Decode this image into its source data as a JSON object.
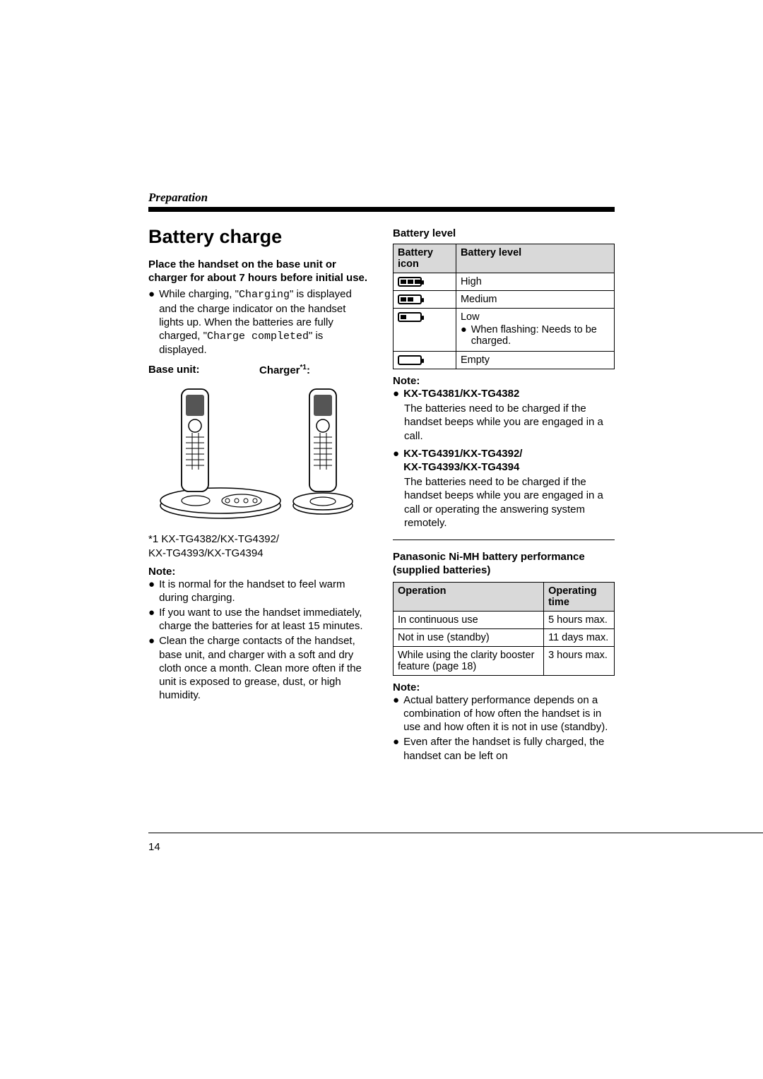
{
  "section": "Preparation",
  "title": "Battery charge",
  "intro_bold": "Place the handset on the base unit or charger for about 7 hours before initial use.",
  "charging_a": "While charging, \"",
  "charging_code1": "Charging",
  "charging_b": "\" is displayed and the charge indicator on the handset lights up. When the batteries are fully charged, \"",
  "charging_code2": "Charge completed",
  "charging_c": "\" is displayed.",
  "label_base": "Base unit:",
  "label_charger": "Charger",
  "label_charger_sup": "*1",
  "label_charger_colon": ":",
  "footnote": "*1 KX-TG4382/KX-TG4392/\nKX-TG4393/KX-TG4394",
  "note_label": "Note:",
  "left_notes": [
    "It is normal for the handset to feel warm during charging.",
    "If you want to use the handset immediately, charge the batteries for at least 15 minutes.",
    "Clean the charge contacts of the handset, base unit, and charger with a soft and dry cloth once a month. Clean more often if the unit is exposed to grease, dust, or high humidity."
  ],
  "battery_level_heading": "Battery level",
  "battery_table": {
    "cols": [
      "Battery icon",
      "Battery level"
    ],
    "rows": [
      {
        "bars": 3,
        "level": "High",
        "flashing": ""
      },
      {
        "bars": 2,
        "level": "Medium",
        "flashing": ""
      },
      {
        "bars": 1,
        "level": "Low",
        "flashing": "When flashing: Needs to be charged."
      },
      {
        "bars": 0,
        "level": "Empty",
        "flashing": ""
      }
    ]
  },
  "right_note_items": [
    {
      "bold": "KX-TG4381/KX-TG4382",
      "text": "The batteries need to be charged if the handset beeps while you are engaged in a call."
    },
    {
      "bold": "KX-TG4391/KX-TG4392/\nKX-TG4393/KX-TG4394",
      "text": "The batteries need to be charged if the handset beeps while you are engaged in a call or operating the answering system remotely."
    }
  ],
  "perf_heading": "Panasonic Ni-MH battery performance (supplied batteries)",
  "perf_table": {
    "cols": [
      "Operation",
      "Operating time"
    ],
    "rows": [
      [
        "In continuous use",
        "5 hours max."
      ],
      [
        "Not in use (standby)",
        "11 days max."
      ],
      [
        "While using the clarity booster feature (page 18)",
        "3 hours max."
      ]
    ]
  },
  "perf_notes": [
    "Actual battery performance depends on a combination of how often the handset is in use and how often it is not in use (standby).",
    "Even after the handset is fully charged, the handset can be left on"
  ],
  "page_number": "14"
}
